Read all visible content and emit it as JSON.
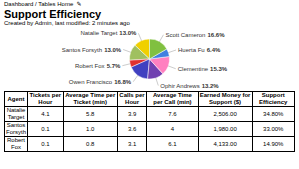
{
  "chart_data": {
    "type": "pie",
    "title": "Support Efficiency",
    "subtitle": "Created by Admin, last modified: 2 minutes ago",
    "annotations": [
      "Dashboard / Tables Home  ✎"
    ],
    "categories": [
      "Natalie Target",
      "Santos Forsyth",
      "Robert Fox",
      "Owen Francisco",
      "Ophir Andrews",
      "Clementine",
      "Huerta Fu",
      "Scott Cameron"
    ],
    "values": [
      13.0,
      13.0,
      5.7,
      16.8,
      13.2,
      15.3,
      6.4,
      16.6
    ],
    "value_labels": [
      "13.0%",
      "13.0%",
      "5.7%",
      "16.8%",
      "13.2%",
      "15.3%",
      "6.4%",
      "16.6%"
    ],
    "colors": [
      "#f0d000",
      "#a0c060",
      "#e03030",
      "#4040c0",
      "#7040b0",
      "#ff80c0",
      "#4080e0",
      "#80c040"
    ],
    "data_labels": true,
    "table": {
      "headers": [
        "Agent",
        "Tickets per Hour",
        "Average Time per Ticket (min)",
        "Calls per Hour",
        "Average Time per Call (min)",
        "Earned Money for Support ($)",
        "Support Efficiency"
      ],
      "rows": [
        [
          "Natalie\nTarget",
          "4.1",
          "5.8",
          "3.9",
          "7.6",
          "2,506.00",
          "34.80%"
        ],
        [
          "Santos\nForsyth",
          "0.1",
          "1.0",
          "3.6",
          "4",
          "1,980.00",
          "33.00%"
        ],
        [
          "Robert\nFox",
          "0.1",
          "0.8",
          "3.1",
          "6.1",
          "4,133.00",
          "14.90%"
        ]
      ]
    }
  }
}
